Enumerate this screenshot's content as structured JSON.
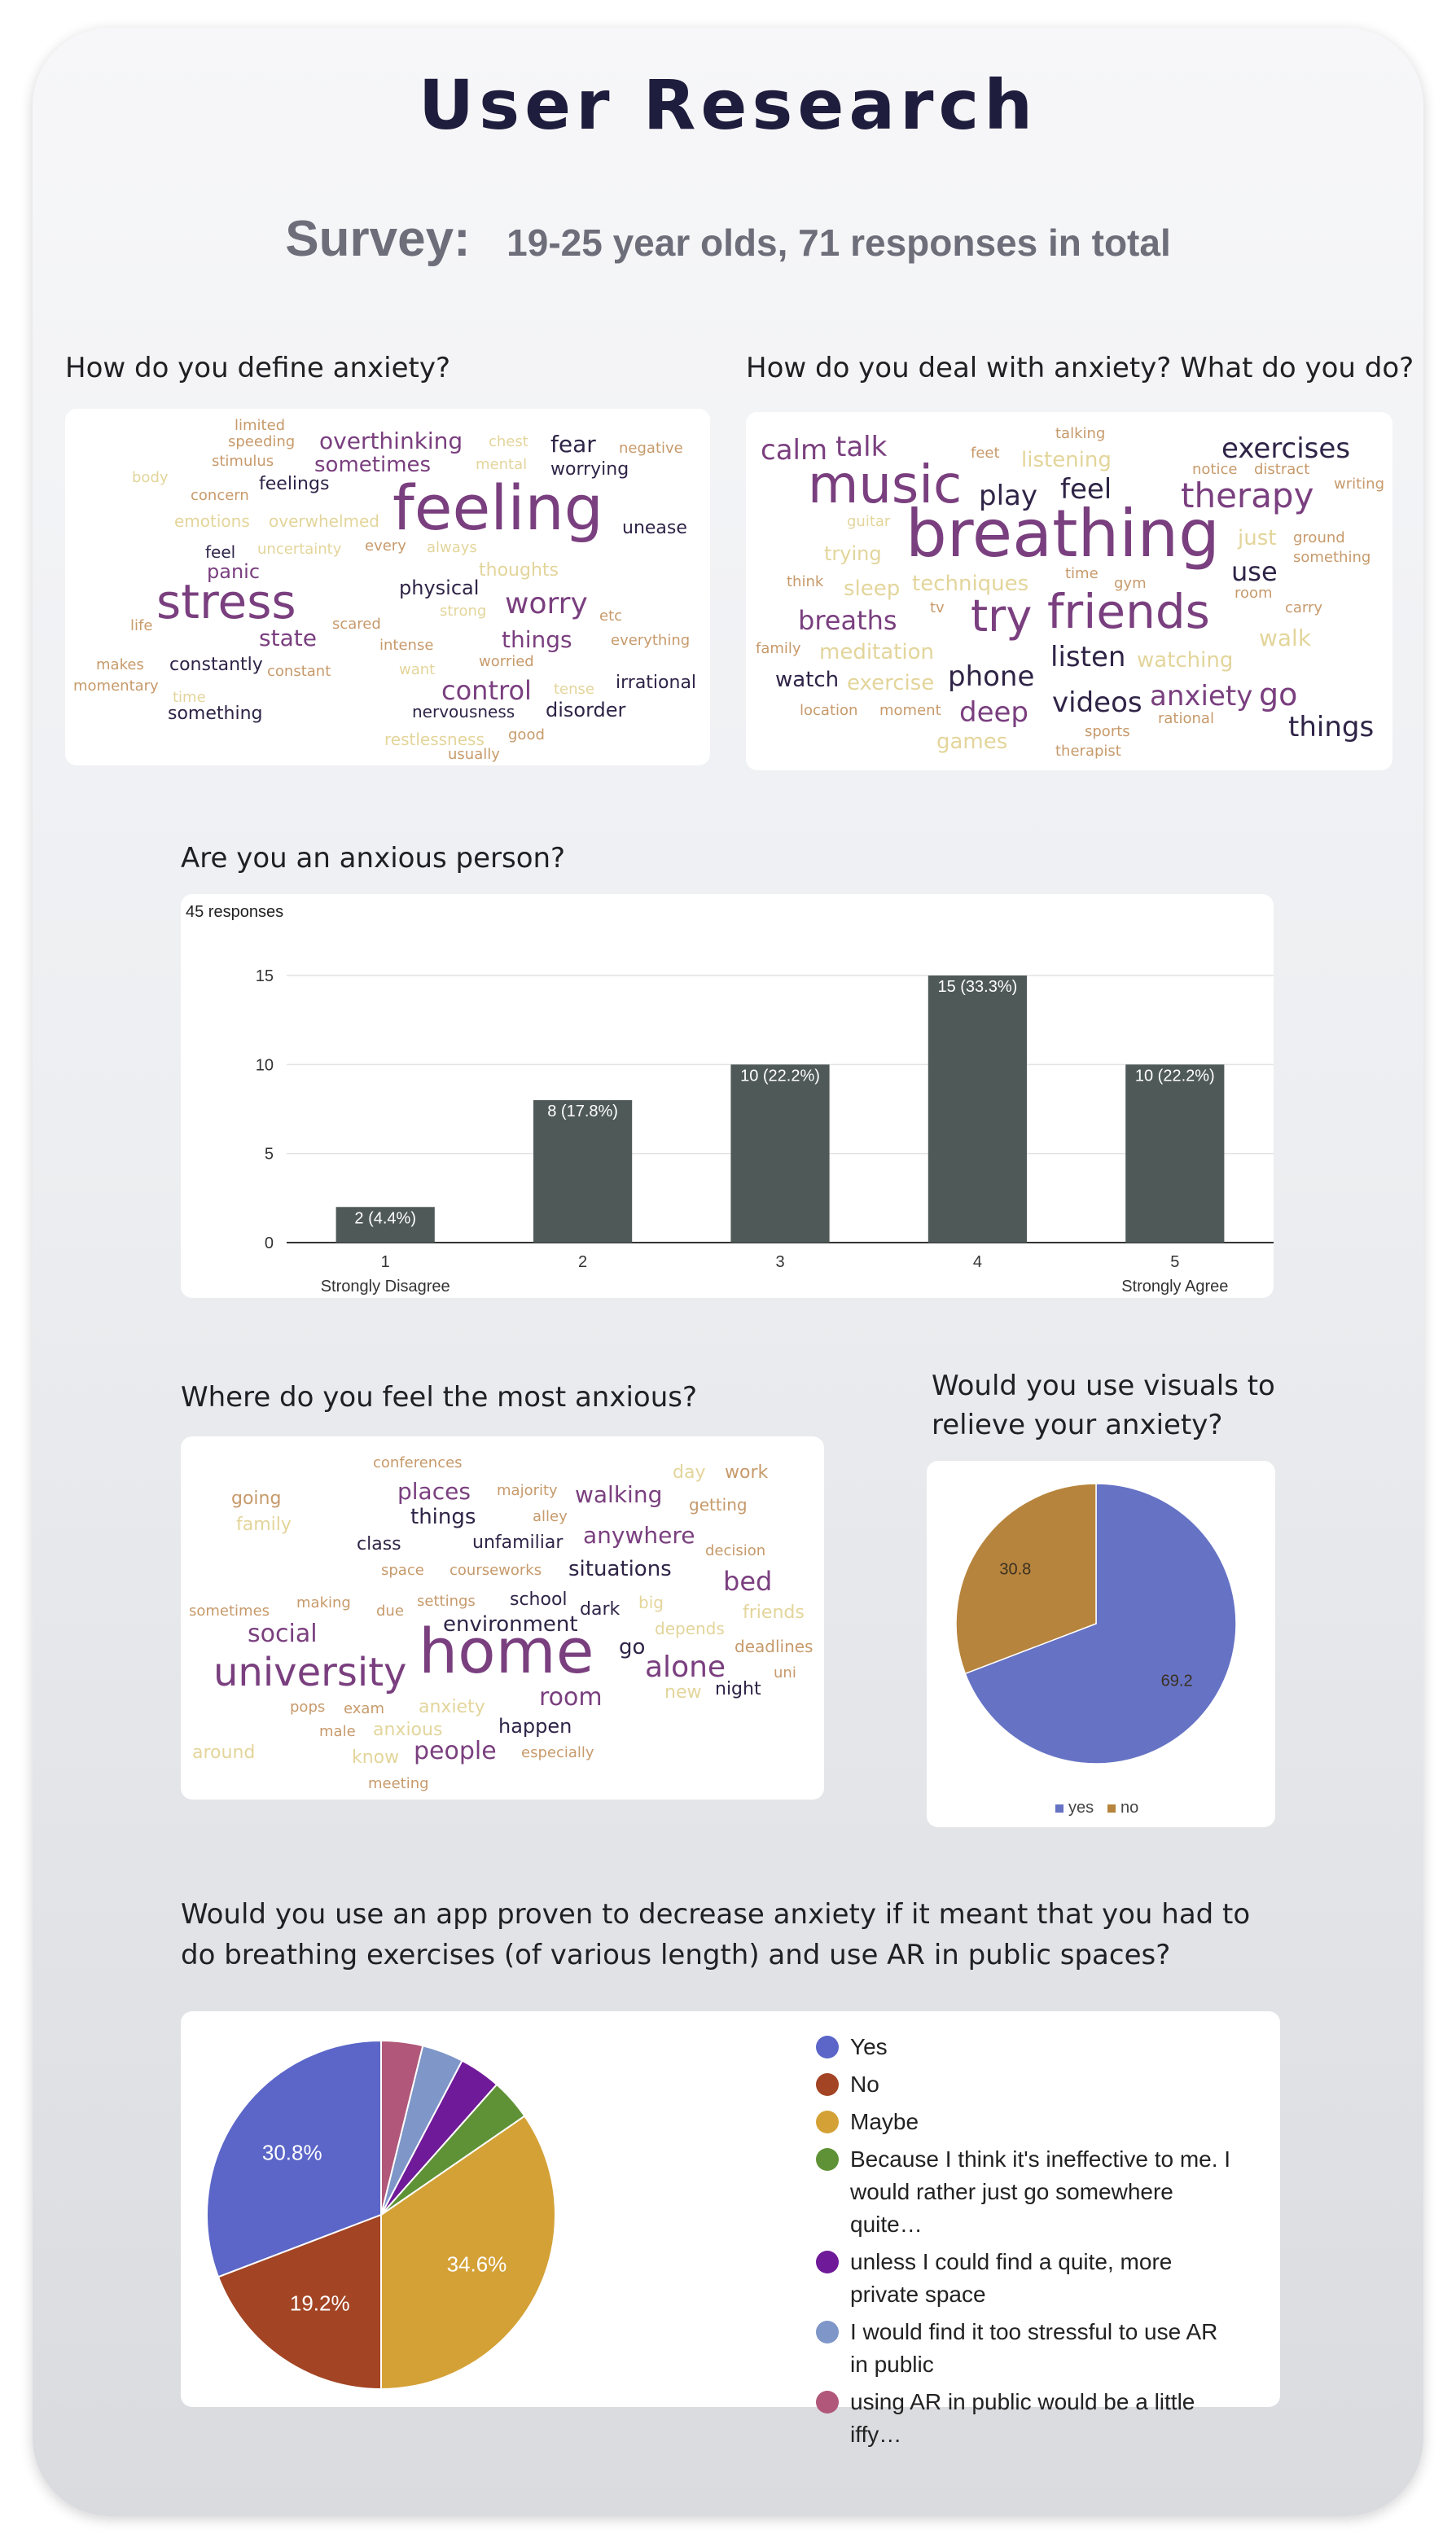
{
  "page": {
    "title": "User Research",
    "survey_label": "Survey:",
    "survey_detail": "19-25 year olds,  71 responses in total"
  },
  "questions": {
    "define": "How do you define anxiety?",
    "deal": "How do you deal with anxiety? What do you do?",
    "anxious": "Are you an anxious person?",
    "where": "Where do you feel the most anxious?",
    "visuals": "Would you use visuals to relieve your anxiety?",
    "app": "Would you use an app proven to decrease anxiety if it meant that you had to do breathing exercises (of various length) and use AR in public spaces?"
  },
  "clouds": {
    "define": [
      {
        "t": "limited"
      },
      {
        "t": "speeding"
      },
      {
        "t": "overthinking"
      },
      {
        "t": "chest"
      },
      {
        "t": "fear"
      },
      {
        "t": "negative"
      },
      {
        "t": "stimulus"
      },
      {
        "t": "sometimes"
      },
      {
        "t": "mental"
      },
      {
        "t": "worrying"
      },
      {
        "t": "body"
      },
      {
        "t": "feelings"
      },
      {
        "t": "feeling"
      },
      {
        "t": "concern"
      },
      {
        "t": "unease"
      },
      {
        "t": "emotions"
      },
      {
        "t": "overwhelmed"
      },
      {
        "t": "feel"
      },
      {
        "t": "uncertainty"
      },
      {
        "t": "every"
      },
      {
        "t": "always"
      },
      {
        "t": "panic"
      },
      {
        "t": "thoughts"
      },
      {
        "t": "stress"
      },
      {
        "t": "physical"
      },
      {
        "t": "worry"
      },
      {
        "t": "life"
      },
      {
        "t": "strong"
      },
      {
        "t": "scared"
      },
      {
        "t": "etc"
      },
      {
        "t": "state"
      },
      {
        "t": "things"
      },
      {
        "t": "intense"
      },
      {
        "t": "everything"
      },
      {
        "t": "makes"
      },
      {
        "t": "constantly"
      },
      {
        "t": "worried"
      },
      {
        "t": "want"
      },
      {
        "t": "constant"
      },
      {
        "t": "momentary"
      },
      {
        "t": "control"
      },
      {
        "t": "tense"
      },
      {
        "t": "irrational"
      },
      {
        "t": "time"
      },
      {
        "t": "something"
      },
      {
        "t": "nervousness"
      },
      {
        "t": "disorder"
      },
      {
        "t": "good"
      },
      {
        "t": "restlessness"
      },
      {
        "t": "usually"
      }
    ],
    "deal": [
      {
        "t": "talking"
      },
      {
        "t": "calm"
      },
      {
        "t": "talk"
      },
      {
        "t": "feet"
      },
      {
        "t": "exercises"
      },
      {
        "t": "listening"
      },
      {
        "t": "music"
      },
      {
        "t": "notice"
      },
      {
        "t": "distract"
      },
      {
        "t": "writing"
      },
      {
        "t": "play"
      },
      {
        "t": "feel"
      },
      {
        "t": "therapy"
      },
      {
        "t": "guitar"
      },
      {
        "t": "breathing"
      },
      {
        "t": "just"
      },
      {
        "t": "ground"
      },
      {
        "t": "trying"
      },
      {
        "t": "something"
      },
      {
        "t": "time"
      },
      {
        "t": "use"
      },
      {
        "t": "think"
      },
      {
        "t": "sleep"
      },
      {
        "t": "techniques"
      },
      {
        "t": "gym"
      },
      {
        "t": "room"
      },
      {
        "t": "try"
      },
      {
        "t": "friends"
      },
      {
        "t": "tv"
      },
      {
        "t": "carry"
      },
      {
        "t": "breaths"
      },
      {
        "t": "walk"
      },
      {
        "t": "family"
      },
      {
        "t": "meditation"
      },
      {
        "t": "listen"
      },
      {
        "t": "watching"
      },
      {
        "t": "watch"
      },
      {
        "t": "exercise"
      },
      {
        "t": "phone"
      },
      {
        "t": "anxiety"
      },
      {
        "t": "go"
      },
      {
        "t": "location"
      },
      {
        "t": "moment"
      },
      {
        "t": "deep"
      },
      {
        "t": "videos"
      },
      {
        "t": "rational"
      },
      {
        "t": "things"
      },
      {
        "t": "sports"
      },
      {
        "t": "games"
      },
      {
        "t": "therapist"
      }
    ],
    "where": [
      {
        "t": "conferences"
      },
      {
        "t": "day"
      },
      {
        "t": "work"
      },
      {
        "t": "places"
      },
      {
        "t": "majority"
      },
      {
        "t": "walking"
      },
      {
        "t": "going"
      },
      {
        "t": "alley"
      },
      {
        "t": "getting"
      },
      {
        "t": "things"
      },
      {
        "t": "family"
      },
      {
        "t": "anywhere"
      },
      {
        "t": "class"
      },
      {
        "t": "unfamiliar"
      },
      {
        "t": "decision"
      },
      {
        "t": "space"
      },
      {
        "t": "courseworks"
      },
      {
        "t": "situations"
      },
      {
        "t": "bed"
      },
      {
        "t": "making"
      },
      {
        "t": "settings"
      },
      {
        "t": "school"
      },
      {
        "t": "big"
      },
      {
        "t": "sometimes"
      },
      {
        "t": "due"
      },
      {
        "t": "dark"
      },
      {
        "t": "friends"
      },
      {
        "t": "social"
      },
      {
        "t": "environment"
      },
      {
        "t": "depends"
      },
      {
        "t": "home"
      },
      {
        "t": "go"
      },
      {
        "t": "deadlines"
      },
      {
        "t": "university"
      },
      {
        "t": "alone"
      },
      {
        "t": "uni"
      },
      {
        "t": "room"
      },
      {
        "t": "new"
      },
      {
        "t": "night"
      },
      {
        "t": "pops"
      },
      {
        "t": "exam"
      },
      {
        "t": "anxiety"
      },
      {
        "t": "male"
      },
      {
        "t": "anxious"
      },
      {
        "t": "happen"
      },
      {
        "t": "around"
      },
      {
        "t": "know"
      },
      {
        "t": "people"
      },
      {
        "t": "especially"
      },
      {
        "t": "meeting"
      }
    ]
  },
  "chart_data": [
    {
      "type": "bar",
      "title": "Are you an anxious person?",
      "subtitle": "45 responses",
      "categories": [
        "1",
        "2",
        "3",
        "4",
        "5"
      ],
      "category_sublabels": [
        "Strongly Disagree",
        "",
        "",
        "",
        "Strongly Agree"
      ],
      "values": [
        2,
        8,
        10,
        15,
        10
      ],
      "data_labels": [
        "2 (4.4%)",
        "8 (17.8%)",
        "10 (22.2%)",
        "15 (33.3%)",
        "10 (22.2%)"
      ],
      "yticks": [
        0,
        5,
        10,
        15
      ],
      "ylim": [
        0,
        15
      ],
      "color": "#4f5958",
      "grid": true
    },
    {
      "type": "pie",
      "title": "Would you use visuals to relieve your anxiety?",
      "slices": [
        {
          "name": "yes",
          "value": 69.2,
          "label": "69.2",
          "color": "#6672c4"
        },
        {
          "name": "no",
          "value": 30.8,
          "label": "30.8",
          "color": "#b7843d"
        }
      ],
      "legend": "bottom"
    },
    {
      "type": "pie",
      "title": "Would you use an app proven to decrease anxiety if it meant that you had to do breathing exercises (of various length) and use AR in public spaces?",
      "slices": [
        {
          "name": "Yes",
          "value": 30.8,
          "label": "30.8%",
          "color": "#5b66c8"
        },
        {
          "name": "No",
          "value": 19.2,
          "label": "19.2%",
          "color": "#a34424"
        },
        {
          "name": "Maybe",
          "value": 34.6,
          "label": "34.6%",
          "color": "#d4a136"
        },
        {
          "name": "Because I think it's ineffective to me. I would rather just go somewhere quite…",
          "value": 3.85,
          "label": "",
          "color": "#5f9237"
        },
        {
          "name": "unless I could find a quite, more private space",
          "value": 3.85,
          "label": "",
          "color": "#6f1a98"
        },
        {
          "name": "I would find it too stressful to use AR in public",
          "value": 3.85,
          "label": "",
          "color": "#7f96c8"
        },
        {
          "name": "using AR in public would be a little iffy…",
          "value": 3.85,
          "label": "",
          "color": "#b0577a"
        }
      ],
      "legend": "right"
    }
  ]
}
